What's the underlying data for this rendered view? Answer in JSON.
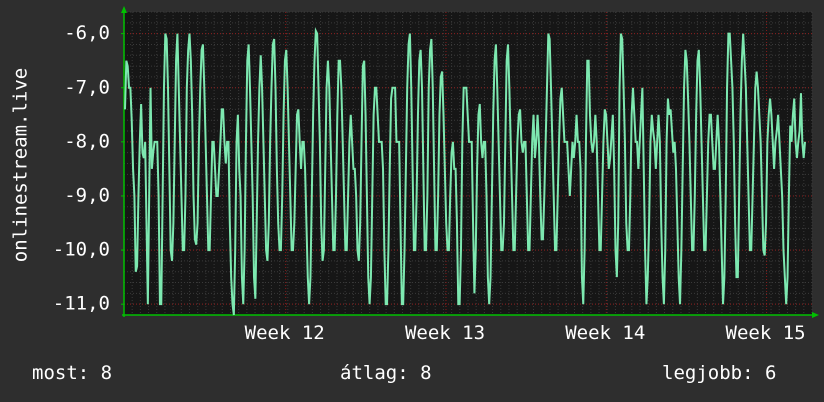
{
  "chart_data": {
    "type": "line",
    "ylabel": "onlinestream.live",
    "ylim": [
      -11.2,
      -5.6
    ],
    "y_ticks": [
      -6,
      -7,
      -8,
      -9,
      -10,
      -11
    ],
    "y_tick_labels": [
      "-6,0",
      "-7,0",
      "-8,0",
      "-9,0",
      "-10,0",
      "-11,0"
    ],
    "x_ticks": [
      {
        "label": "Week 12",
        "pos": 0.235
      },
      {
        "label": "Week 13",
        "pos": 0.468
      },
      {
        "label": "Week 14",
        "pos": 0.701
      },
      {
        "label": "Week 15",
        "pos": 0.934
      }
    ],
    "x_range": [
      0,
      1
    ],
    "grid": true,
    "series": [
      {
        "color": "#7de8b0",
        "values": [
          -7.4,
          -6.5,
          -6.6,
          -7.0,
          -7.0,
          -7.6,
          -8.5,
          -9.0,
          -10.4,
          -10.3,
          -9.0,
          -8.0,
          -7.3,
          -8.2,
          -8.3,
          -8.0,
          -9.5,
          -11.0,
          -9.0,
          -7.0,
          -8.5,
          -8.2,
          -8.0,
          -8.0,
          -8.0,
          -9.0,
          -11.0,
          -11.0,
          -9.0,
          -7.0,
          -6.0,
          -6.1,
          -7.0,
          -8.5,
          -10.0,
          -10.2,
          -9.5,
          -8.0,
          -6.5,
          -6.0,
          -7.0,
          -8.0,
          -9.0,
          -10.0,
          -10.0,
          -9.0,
          -7.0,
          -6.3,
          -6.0,
          -6.5,
          -7.5,
          -9.0,
          -9.8,
          -9.9,
          -9.5,
          -8.0,
          -7.0,
          -6.3,
          -6.2,
          -7.0,
          -8.0,
          -9.0,
          -10.0,
          -10.0,
          -9.0,
          -8.0,
          -8.0,
          -8.5,
          -9.0,
          -9.0,
          -8.5,
          -8.0,
          -7.4,
          -7.4,
          -8.0,
          -8.4,
          -8.0,
          -8.0,
          -9.5,
          -10.5,
          -11.0,
          -11.2,
          -10.0,
          -8.0,
          -7.5,
          -8.5,
          -9.0,
          -10.5,
          -11.0,
          -10.0,
          -8.0,
          -6.5,
          -6.2,
          -7.0,
          -8.0,
          -9.0,
          -10.5,
          -10.9,
          -9.5,
          -8.0,
          -7.0,
          -6.4,
          -7.0,
          -8.0,
          -9.0,
          -10.0,
          -10.2,
          -9.5,
          -8.0,
          -7.0,
          -6.2,
          -6.1,
          -7.0,
          -8.5,
          -9.5,
          -10.0,
          -10.0,
          -9.0,
          -7.5,
          -6.5,
          -6.3,
          -7.0,
          -8.0,
          -9.0,
          -10.0,
          -10.0,
          -9.5,
          -8.5,
          -7.5,
          -7.4,
          -8.0,
          -8.5,
          -8.0,
          -8.0,
          -8.5,
          -9.5,
          -10.5,
          -11.0,
          -10.5,
          -9.0,
          -7.5,
          -6.5,
          -5.95,
          -6.0,
          -7.0,
          -8.0,
          -9.5,
          -10.2,
          -10.0,
          -8.5,
          -7.0,
          -6.5,
          -7.0,
          -8.0,
          -9.0,
          -10.0,
          -10.0,
          -9.0,
          -7.5,
          -6.5,
          -6.5,
          -7.0,
          -8.0,
          -9.0,
          -10.0,
          -10.0,
          -9.0,
          -8.0,
          -7.5,
          -8.0,
          -8.5,
          -8.5,
          -9.0,
          -10.0,
          -10.2,
          -9.5,
          -8.0,
          -6.6,
          -6.5,
          -7.5,
          -9.0,
          -10.5,
          -11.0,
          -10.5,
          -9.0,
          -7.5,
          -7.0,
          -7.0,
          -7.5,
          -8.0,
          -8.0,
          -8.0,
          -8.5,
          -10.0,
          -11.0,
          -11.0,
          -10.0,
          -8.5,
          -7.2,
          -7.0,
          -7.0,
          -7.0,
          -8.0,
          -8.0,
          -8.0,
          -9.5,
          -11.0,
          -11.0,
          -10.0,
          -8.5,
          -7.0,
          -6.2,
          -6.0,
          -7.0,
          -8.5,
          -10.0,
          -10.0,
          -9.0,
          -7.5,
          -6.5,
          -6.3,
          -7.0,
          -8.5,
          -10.0,
          -10.0,
          -9.0,
          -7.0,
          -6.3,
          -6.1,
          -7.0,
          -8.5,
          -10.0,
          -10.0,
          -9.0,
          -7.5,
          -6.8,
          -6.7,
          -7.5,
          -8.5,
          -9.5,
          -10.0,
          -10.0,
          -9.0,
          -8.2,
          -8.0,
          -8.5,
          -8.5,
          -9.5,
          -11.0,
          -11.0,
          -10.0,
          -8.0,
          -7.0,
          -7.0,
          -7.0,
          -7.5,
          -8.0,
          -8.0,
          -8.0,
          -9.5,
          -10.8,
          -10.0,
          -8.5,
          -7.5,
          -7.3,
          -8.0,
          -8.3,
          -8.0,
          -8.0,
          -9.0,
          -10.5,
          -11.0,
          -10.5,
          -9.0,
          -7.5,
          -6.5,
          -6.2,
          -7.0,
          -8.0,
          -9.0,
          -10.0,
          -10.0,
          -9.5,
          -8.0,
          -6.5,
          -6.2,
          -7.0,
          -8.0,
          -9.0,
          -10.0,
          -10.0,
          -9.0,
          -8.0,
          -7.5,
          -7.4,
          -8.0,
          -8.2,
          -8.0,
          -8.0,
          -9.0,
          -10.0,
          -10.0,
          -9.0,
          -8.0,
          -7.5,
          -8.3,
          -8.0,
          -7.5,
          -8.0,
          -9.0,
          -9.8,
          -9.8,
          -9.0,
          -8.0,
          -7.0,
          -6.0,
          -6.1,
          -7.0,
          -8.0,
          -9.0,
          -10.0,
          -10.0,
          -9.0,
          -8.0,
          -7.2,
          -7.0,
          -7.5,
          -8.0,
          -8.0,
          -8.0,
          -8.5,
          -9.0,
          -8.5,
          -8.0,
          -8.3,
          -8.0,
          -7.5,
          -8.0,
          -8.0,
          -8.5,
          -10.5,
          -11.0,
          -10.0,
          -8.0,
          -6.5,
          -6.5,
          -7.5,
          -8.0,
          -8.2,
          -8.0,
          -7.5,
          -8.0,
          -9.0,
          -10.0,
          -10.0,
          -9.0,
          -8.0,
          -7.4,
          -7.5,
          -8.0,
          -8.5,
          -8.3,
          -7.9,
          -7.5,
          -8.5,
          -10.0,
          -10.5,
          -9.5,
          -7.0,
          -6.0,
          -6.1,
          -7.0,
          -8.0,
          -9.5,
          -10.0,
          -10.0,
          -9.0,
          -7.5,
          -7.0,
          -7.5,
          -8.0,
          -8.0,
          -8.5,
          -8.0,
          -7.5,
          -7.0,
          -8.5,
          -10.0,
          -11.0,
          -10.5,
          -9.5,
          -8.0,
          -7.5,
          -7.8,
          -8.0,
          -8.5,
          -8.0,
          -7.5,
          -8.0,
          -9.5,
          -10.5,
          -11.0,
          -10.0,
          -8.0,
          -7.2,
          -7.5,
          -7.4,
          -7.8,
          -8.2,
          -8.0,
          -8.5,
          -9.5,
          -10.5,
          -11.0,
          -10.0,
          -8.5,
          -7.0,
          -6.3,
          -6.5,
          -7.2,
          -8.0,
          -9.0,
          -10.0,
          -10.0,
          -9.0,
          -7.5,
          -6.5,
          -6.3,
          -7.0,
          -8.0,
          -9.0,
          -10.0,
          -10.0,
          -9.0,
          -8.0,
          -7.5,
          -7.5,
          -8.0,
          -8.5,
          -8.5,
          -8.0,
          -7.5,
          -8.0,
          -9.0,
          -10.0,
          -11.0,
          -10.5,
          -9.0,
          -7.0,
          -6.0,
          -6.0,
          -6.5,
          -7.0,
          -8.0,
          -9.5,
          -10.5,
          -10.5,
          -9.0,
          -7.5,
          -6.5,
          -6.0,
          -6.5,
          -7.0,
          -8.0,
          -9.0,
          -10.0,
          -10.0,
          -9.0,
          -8.0,
          -7.0,
          -6.7,
          -7.0,
          -7.5,
          -8.0,
          -9.0,
          -10.0,
          -10.1,
          -9.5,
          -8.0,
          -7.5,
          -7.2,
          -7.5,
          -8.0,
          -8.5,
          -8.0,
          -7.8,
          -7.5,
          -8.0,
          -8.5,
          -9.0,
          -10.0,
          -10.5,
          -11.0,
          -10.5,
          -9.0,
          -7.7,
          -8.0,
          -7.5,
          -7.2,
          -8.0,
          -8.3,
          -8.0,
          -7.8,
          -7.1,
          -8.0,
          -8.3,
          -8.0
        ]
      }
    ]
  },
  "legend": {
    "now": "most: 8",
    "avg": "átlag: 8",
    "max": "legjobb: 6"
  },
  "colors": {
    "background": "#2e2e2e",
    "plot_background": "#161616",
    "minor_grid": "#3a3a3a",
    "major_grid": "#8a1c1c",
    "axis": "#00c000",
    "line": "#7de8b0",
    "text": "#ffffff"
  }
}
